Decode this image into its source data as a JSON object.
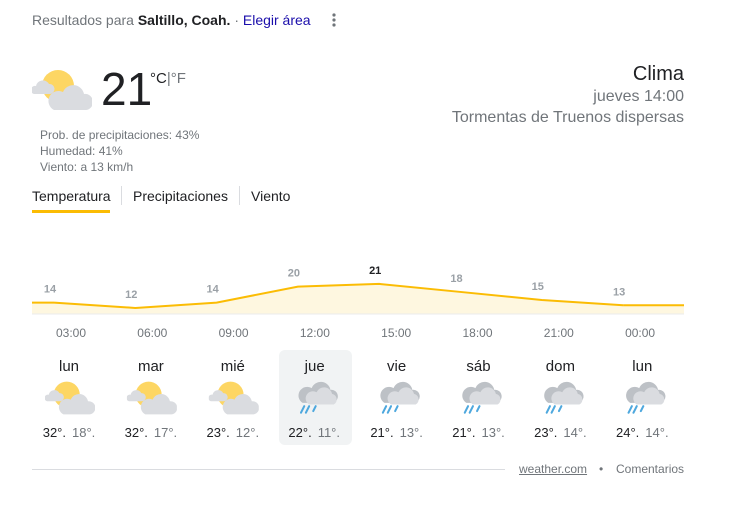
{
  "header": {
    "prefix": "Resultados para",
    "location": "Saltillo, Coah.",
    "separator": "·",
    "change_area": "Elegir área"
  },
  "current": {
    "temperature": 21,
    "unit_c": "°C",
    "unit_separator": "|",
    "unit_f": "°F",
    "details": [
      "Prob. de precipitaciones: 43%",
      "Humedad: 41%",
      "Viento: a 13 km/h"
    ],
    "title": "Clima",
    "time": "jueves 14:00",
    "condition": "Tormentas de Truenos dispersas"
  },
  "tabs": [
    "Temperatura",
    "Precipitaciones",
    "Viento"
  ],
  "hourly": {
    "times": [
      "03:00",
      "06:00",
      "09:00",
      "12:00",
      "15:00",
      "18:00",
      "21:00",
      "00:00"
    ],
    "values": [
      14,
      12,
      14,
      20,
      21,
      18,
      15,
      13
    ]
  },
  "days": [
    {
      "day": "lun",
      "high": "32°.",
      "low": "18°."
    },
    {
      "day": "mar",
      "high": "32°.",
      "low": "17°."
    },
    {
      "day": "mié",
      "high": "23°.",
      "low": "12°."
    },
    {
      "day": "jue",
      "high": "22°.",
      "low": "11°."
    },
    {
      "day": "vie",
      "high": "21°.",
      "low": "13°."
    },
    {
      "day": "sáb",
      "high": "21°.",
      "low": "13°."
    },
    {
      "day": "dom",
      "high": "23°.",
      "low": "14°."
    },
    {
      "day": "lun",
      "high": "24°.",
      "low": "14°."
    }
  ],
  "footer": {
    "source": "weather.com",
    "separator": "•",
    "feedback": "Comentarios"
  }
}
